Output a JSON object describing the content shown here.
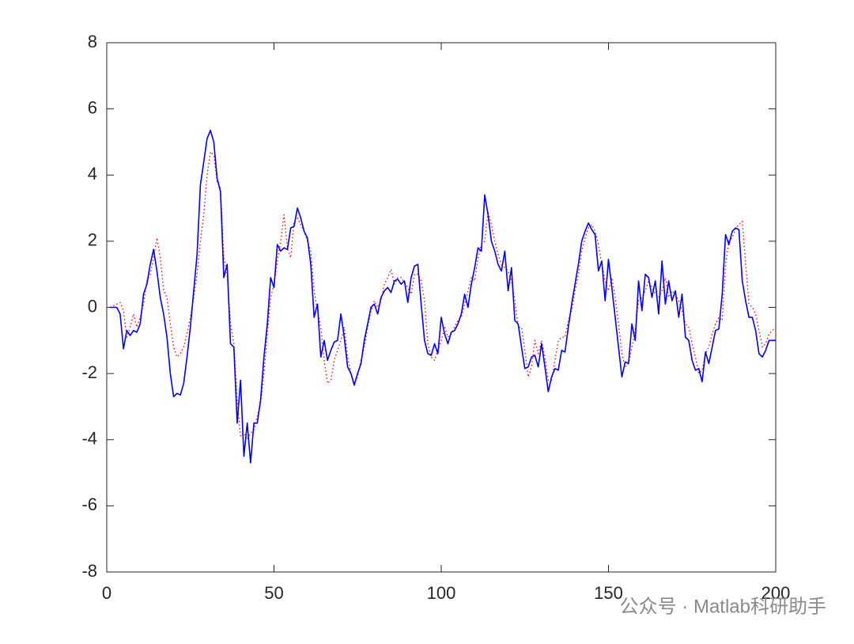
{
  "chart_data": {
    "type": "line",
    "annotation": "公众号 · Matlab科研助手",
    "x": [
      1,
      2,
      3,
      4,
      5,
      6,
      7,
      8,
      9,
      10,
      11,
      12,
      13,
      14,
      15,
      16,
      17,
      18,
      19,
      20,
      21,
      22,
      23,
      24,
      25,
      26,
      27,
      28,
      29,
      30,
      31,
      32,
      33,
      34,
      35,
      36,
      37,
      38,
      39,
      40,
      41,
      42,
      43,
      44,
      45,
      46,
      47,
      48,
      49,
      50,
      51,
      52,
      53,
      54,
      55,
      56,
      57,
      58,
      59,
      60,
      61,
      62,
      63,
      64,
      65,
      66,
      67,
      68,
      69,
      70,
      71,
      72,
      73,
      74,
      75,
      76,
      77,
      78,
      79,
      80,
      81,
      82,
      83,
      84,
      85,
      86,
      87,
      88,
      89,
      90,
      91,
      92,
      93,
      94,
      95,
      96,
      97,
      98,
      99,
      100,
      101,
      102,
      103,
      104,
      105,
      106,
      107,
      108,
      109,
      110,
      111,
      112,
      113,
      114,
      115,
      116,
      117,
      118,
      119,
      120,
      121,
      122,
      123,
      124,
      125,
      126,
      127,
      128,
      129,
      130,
      131,
      132,
      133,
      134,
      135,
      136,
      137,
      138,
      139,
      140,
      141,
      142,
      143,
      144,
      145,
      146,
      147,
      148,
      149,
      150,
      151,
      152,
      153,
      154,
      155,
      156,
      157,
      158,
      159,
      160,
      161,
      162,
      163,
      164,
      165,
      166,
      167,
      168,
      169,
      170,
      171,
      172,
      173,
      174,
      175,
      176,
      177,
      178,
      179,
      180,
      181,
      182,
      183,
      184,
      185,
      186,
      187,
      188,
      189,
      190,
      191,
      192,
      193,
      194,
      195,
      196,
      197,
      198,
      199,
      200
    ],
    "series": [
      {
        "color": "#ff0000",
        "style": "dotted",
        "values": [
          0,
          0.05,
          0.1,
          0.15,
          -0.1,
          -0.9,
          -0.6,
          -0.2,
          -0.6,
          -0.3,
          0.1,
          0.8,
          1.0,
          1.5,
          2.1,
          1.5,
          0.5,
          0.3,
          -0.5,
          -1.2,
          -1.5,
          -1.4,
          -1.2,
          -0.8,
          -0.3,
          0.3,
          1.0,
          2.0,
          2.8,
          4.0,
          4.7,
          4.6,
          3.8,
          3.6,
          1.5,
          1.0,
          -0.5,
          -1.1,
          -2.8,
          -3.9,
          -3.8,
          -4.0,
          -3.8,
          -3.7,
          -3.3,
          -2.9,
          -2.0,
          -0.8,
          0.3,
          0.7,
          1.4,
          2.0,
          2.8,
          1.8,
          1.5,
          2.6,
          2.7,
          2.5,
          2.3,
          2.0,
          1.7,
          0.5,
          -0.1,
          -0.6,
          -1.6,
          -2.3,
          -2.2,
          -1.6,
          -1.3,
          -1.0,
          -0.6,
          -1.5,
          -2.0,
          -2.3,
          -2.1,
          -1.6,
          -1.2,
          -0.6,
          -0.1,
          0.2,
          0.0,
          0.2,
          0.7,
          0.9,
          1.15,
          0.7,
          0.9,
          0.9,
          0.75,
          0.6,
          0.4,
          1.0,
          1.0,
          0.8,
          0.2,
          -1.1,
          -1.5,
          -1.6,
          -1.3,
          -1.0,
          -0.6,
          -0.9,
          -0.8,
          -0.6,
          -0.4,
          -0.3,
          0.1,
          0.5,
          0.9,
          0.8,
          1.5,
          1.9,
          2.0,
          2.9,
          2.5,
          2.0,
          1.6,
          1.3,
          1.2,
          1.1,
          0.8,
          0.2,
          -0.6,
          -0.6,
          -1.3,
          -2.1,
          -1.8,
          -1.0,
          -1.4,
          -1.0,
          -1.5,
          -2.2,
          -2.2,
          -1.6,
          -1.0,
          -0.9,
          -0.9,
          -0.4,
          -0.1,
          0.5,
          1.0,
          1.7,
          2.1,
          2.4,
          2.5,
          2.3,
          1.9,
          1.3,
          0.8,
          0.5,
          0.9,
          0.3,
          -0.5,
          -1.4,
          -1.8,
          -1.7,
          -1.2,
          -0.7,
          0.2,
          0.3,
          0.5,
          0.8,
          0.6,
          0.4,
          0.3,
          0.5,
          0.9,
          0.3,
          0.5,
          0.4,
          0.2,
          -0.1,
          -0.5,
          -0.6,
          -1.1,
          -1.5,
          -2.0,
          -1.9,
          -1.4,
          -1.2,
          -0.8,
          -0.5,
          -0.3,
          -0.4,
          1.3,
          2.0,
          2.1,
          2.4,
          2.5,
          2.6,
          1.3,
          0.1,
          0.0,
          -0.2,
          -0.7,
          -1.2,
          -1.1,
          -0.8,
          -0.7,
          -0.6
        ]
      },
      {
        "color": "#0000ff",
        "style": "solid",
        "values": [
          0,
          0,
          0,
          -0.2,
          -1.25,
          -0.7,
          -0.85,
          -0.7,
          -0.75,
          -0.5,
          0.4,
          0.7,
          1.3,
          1.75,
          1.1,
          0.3,
          -0.2,
          -0.9,
          -2.0,
          -2.7,
          -2.6,
          -2.65,
          -2.3,
          -1.5,
          -0.6,
          0.5,
          1.6,
          3.7,
          4.4,
          5.1,
          5.35,
          5.0,
          3.9,
          3.5,
          0.9,
          1.3,
          -1.1,
          -1.2,
          -3.5,
          -2.2,
          -4.5,
          -3.5,
          -4.7,
          -3.5,
          -3.5,
          -2.8,
          -1.5,
          -0.5,
          0.9,
          0.6,
          1.9,
          1.7,
          1.8,
          1.75,
          2.4,
          2.45,
          3.0,
          2.7,
          2.3,
          2.1,
          1.3,
          -0.3,
          0.1,
          -1.5,
          -1.0,
          -1.6,
          -1.3,
          -1.05,
          -1.0,
          -0.2,
          -0.9,
          -1.8,
          -2.0,
          -2.35,
          -2.0,
          -1.7,
          -1.0,
          -0.5,
          0.0,
          0.1,
          -0.2,
          0.3,
          0.5,
          0.6,
          0.45,
          0.8,
          0.85,
          0.7,
          0.8,
          0.15,
          0.9,
          1.25,
          1.3,
          0.1,
          -1.0,
          -1.4,
          -1.45,
          -1.1,
          -1.4,
          -0.3,
          -0.8,
          -1.1,
          -0.75,
          -0.7,
          -0.5,
          -0.2,
          0.4,
          0.0,
          0.7,
          1.2,
          1.8,
          1.7,
          3.4,
          2.8,
          2.0,
          1.7,
          1.3,
          1.1,
          1.7,
          0.5,
          1.2,
          -0.4,
          -0.5,
          -1.2,
          -1.85,
          -1.8,
          -1.5,
          -1.45,
          -1.8,
          -1.1,
          -1.8,
          -2.55,
          -2.1,
          -1.85,
          -1.9,
          -1.3,
          -1.35,
          -0.6,
          0.1,
          0.7,
          1.3,
          2.0,
          2.3,
          2.55,
          2.35,
          2.2,
          1.1,
          1.4,
          0.2,
          1.45,
          0.6,
          -0.3,
          -1.2,
          -2.1,
          -1.65,
          -1.7,
          -0.5,
          -1.0,
          0.8,
          -0.1,
          1.0,
          0.9,
          0.3,
          0.8,
          -0.2,
          1.4,
          0.1,
          0.8,
          0.2,
          0.5,
          -0.3,
          0.4,
          -0.9,
          -1.0,
          -1.6,
          -1.9,
          -1.85,
          -2.25,
          -1.35,
          -1.7,
          -1.2,
          -0.7,
          -0.65,
          0.4,
          2.2,
          1.9,
          2.3,
          2.4,
          2.35,
          0.8,
          0.2,
          -0.3,
          -0.3,
          -0.7,
          -1.4,
          -1.5,
          -1.3,
          -1.0,
          -1.0,
          -1.0
        ]
      }
    ],
    "xlim": [
      0,
      200
    ],
    "xticks": [
      0,
      50,
      100,
      150,
      200
    ],
    "ylim": [
      -8,
      8
    ],
    "yticks": [
      -8,
      -6,
      -4,
      -2,
      0,
      2,
      4,
      6,
      8
    ],
    "grid": false,
    "box": true
  }
}
